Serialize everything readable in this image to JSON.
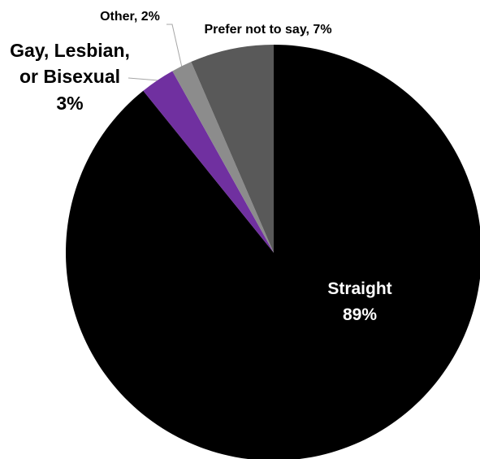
{
  "chart_data": {
    "type": "pie",
    "title": "",
    "start_angle_deg": 0,
    "direction": "clockwise",
    "slices": [
      {
        "label": "Straight",
        "value_label": "89%",
        "value": 89.2,
        "color": "#000000"
      },
      {
        "label": "Gay, Lesbian, or Bisexual",
        "value_label": "3%",
        "value": 2.7,
        "color": "#7030a0"
      },
      {
        "label": "Other",
        "value_label": "2%",
        "value": 1.6,
        "color": "#8c8c8c"
      },
      {
        "label": "Prefer not to say",
        "value_label": "7%",
        "value": 6.5,
        "color": "#595959"
      }
    ],
    "label_lines": [
      {
        "text": "Straight",
        "slice": 0
      },
      {
        "text": "89%",
        "slice": 0
      },
      {
        "text": "Gay, Lesbian,",
        "slice": 1
      },
      {
        "text": "or Bisexual",
        "slice": 1
      },
      {
        "text": "3%",
        "slice": 1
      },
      {
        "text": "Other, 2%",
        "slice": 2
      },
      {
        "text": "Prefer not to say, 7%",
        "slice": 3
      }
    ],
    "colors": {
      "label_inside": "#ffffff",
      "label_outside": "#000000",
      "leader_line": "#a6a6a6"
    }
  }
}
